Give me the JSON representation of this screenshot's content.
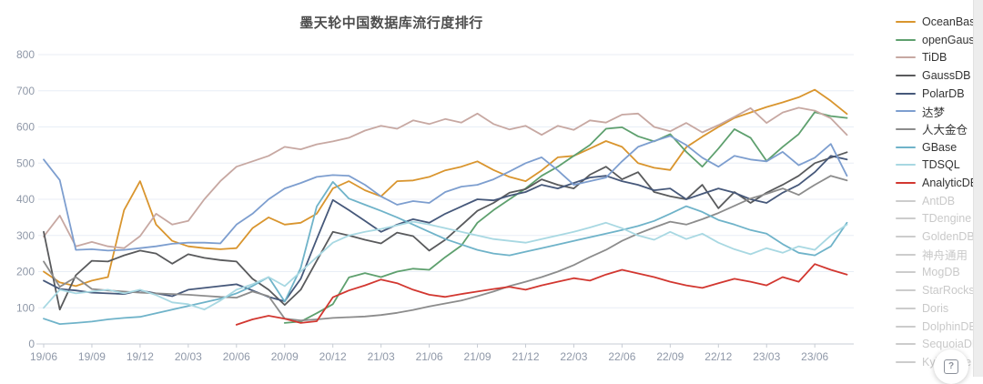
{
  "help_button": {
    "icon": "boxed-question-icon",
    "label": "?"
  },
  "chart_data": {
    "type": "line",
    "title": "墨天轮中国数据库流行度排行",
    "x_start": "19/06",
    "x_end": "23/08",
    "x_interval": "monthly",
    "x_tick_labels": [
      "19/06",
      "19/09",
      "19/12",
      "20/03",
      "20/06",
      "20/09",
      "20/12",
      "21/03",
      "21/06",
      "21/09",
      "21/12",
      "22/03",
      "22/06",
      "22/09",
      "22/12",
      "23/03",
      "23/06"
    ],
    "x_tick_every": 3,
    "y_ticks": [
      0,
      100,
      200,
      300,
      400,
      500,
      600,
      700,
      800
    ],
    "ylim": [
      0,
      800
    ],
    "grid": "horizontal",
    "legend_position": "right",
    "series": [
      {
        "name": "OceanBase",
        "color": "#d9952e",
        "start_index": 0,
        "values": [
          200,
          170,
          160,
          175,
          185,
          370,
          450,
          330,
          285,
          270,
          265,
          262,
          265,
          320,
          350,
          330,
          335,
          360,
          430,
          450,
          425,
          408,
          450,
          452,
          462,
          480,
          490,
          505,
          481,
          462,
          450,
          480,
          516,
          520,
          540,
          561,
          545,
          500,
          487,
          481,
          544,
          573,
          600,
          625,
          640,
          655,
          668,
          682,
          703,
          672,
          636
        ]
      },
      {
        "name": "openGauss",
        "color": "#5ea06e",
        "start_index": 15,
        "values": [
          58,
          62,
          85,
          110,
          184,
          196,
          185,
          200,
          208,
          205,
          240,
          272,
          335,
          370,
          400,
          430,
          465,
          490,
          520,
          550,
          595,
          599,
          574,
          560,
          580,
          531,
          490,
          540,
          594,
          570,
          506,
          545,
          580,
          641,
          630,
          625
        ]
      },
      {
        "name": "TiDB",
        "color": "#c7a8a2",
        "start_index": 0,
        "values": [
          297,
          355,
          270,
          282,
          270,
          265,
          298,
          360,
          330,
          340,
          400,
          450,
          490,
          505,
          520,
          545,
          538,
          552,
          560,
          570,
          590,
          603,
          595,
          618,
          608,
          622,
          612,
          637,
          608,
          593,
          603,
          578,
          603,
          592,
          618,
          612,
          634,
          637,
          600,
          588,
          611,
          585,
          605,
          628,
          652,
          611,
          640,
          653,
          645,
          624,
          578
        ]
      },
      {
        "name": "GaussDB",
        "color": "#595a5c",
        "start_index": 0,
        "values": [
          310,
          95,
          190,
          230,
          228,
          245,
          258,
          250,
          222,
          248,
          238,
          232,
          228,
          180,
          150,
          108,
          150,
          230,
          310,
          300,
          288,
          278,
          308,
          298,
          258,
          288,
          328,
          368,
          390,
          418,
          428,
          455,
          440,
          430,
          468,
          490,
          455,
          475,
          420,
          408,
          400,
          440,
          375,
          420,
          390,
          418,
          440,
          465,
          500,
          515,
          530
        ]
      },
      {
        "name": "PolarDB",
        "color": "#46587a",
        "start_index": 0,
        "values": [
          175,
          152,
          148,
          142,
          140,
          138,
          148,
          140,
          132,
          150,
          155,
          160,
          165,
          148,
          130,
          118,
          180,
          290,
          398,
          370,
          340,
          310,
          330,
          345,
          335,
          360,
          380,
          400,
          397,
          410,
          420,
          440,
          430,
          445,
          460,
          465,
          450,
          440,
          425,
          430,
          400,
          415,
          430,
          418,
          400,
          390,
          418,
          440,
          475,
          520,
          510
        ]
      },
      {
        "name": "达梦",
        "color": "#7d9ecf",
        "start_index": 0,
        "values": [
          510,
          453,
          260,
          262,
          258,
          260,
          265,
          270,
          277,
          280,
          280,
          278,
          330,
          360,
          400,
          430,
          445,
          462,
          467,
          465,
          440,
          408,
          385,
          395,
          390,
          420,
          435,
          440,
          455,
          477,
          500,
          516,
          480,
          440,
          450,
          460,
          505,
          545,
          561,
          575,
          550,
          515,
          490,
          520,
          510,
          505,
          531,
          494,
          515,
          553,
          465
        ]
      },
      {
        "name": "人大金仓",
        "color": "#8c8c8c",
        "start_index": 0,
        "values": [
          228,
          158,
          185,
          152,
          148,
          145,
          142,
          140,
          138,
          136,
          133,
          130,
          128,
          145,
          132,
          70,
          65,
          68,
          72,
          74,
          76,
          80,
          86,
          94,
          104,
          112,
          120,
          132,
          145,
          160,
          172,
          185,
          200,
          218,
          240,
          260,
          285,
          305,
          322,
          338,
          330,
          345,
          362,
          382,
          402,
          415,
          430,
          412,
          440,
          465,
          452
        ]
      },
      {
        "name": "GBase",
        "color": "#6fb3c9",
        "start_index": 0,
        "values": [
          70,
          55,
          58,
          62,
          68,
          72,
          75,
          85,
          95,
          105,
          115,
          125,
          140,
          160,
          185,
          117,
          210,
          380,
          448,
          402,
          385,
          368,
          350,
          330,
          310,
          290,
          275,
          260,
          250,
          245,
          255,
          265,
          275,
          285,
          295,
          305,
          315,
          326,
          340,
          360,
          381,
          365,
          343,
          330,
          315,
          305,
          276,
          252,
          245,
          270,
          335
        ]
      },
      {
        "name": "TDSQL",
        "color": "#a8d8e2",
        "start_index": 0,
        "values": [
          100,
          150,
          140,
          145,
          150,
          140,
          150,
          135,
          115,
          110,
          95,
          120,
          150,
          165,
          185,
          160,
          200,
          240,
          280,
          300,
          310,
          318,
          328,
          338,
          330,
          320,
          310,
          300,
          290,
          285,
          280,
          290,
          300,
          310,
          322,
          335,
          320,
          300,
          288,
          310,
          290,
          305,
          280,
          262,
          248,
          265,
          252,
          270,
          260,
          300,
          330
        ]
      },
      {
        "name": "AnalyticDB",
        "color": "#d23730",
        "start_index": 12,
        "values": [
          53,
          68,
          78,
          70,
          58,
          63,
          129,
          148,
          162,
          178,
          168,
          150,
          136,
          130,
          138,
          145,
          152,
          158,
          150,
          162,
          172,
          182,
          175,
          192,
          205,
          195,
          185,
          172,
          162,
          155,
          168,
          180,
          172,
          162,
          185,
          172,
          221,
          205,
          192
        ]
      }
    ],
    "inactive_series": [
      "AntDB",
      "TDengine",
      "GoldenDB",
      "神舟通用",
      "MogDB",
      "StarRocks",
      "Doris",
      "DolphinDB",
      "SequoiaDB",
      "Kyligence"
    ],
    "inactive_color": "#cccccc",
    "style": {
      "grid_color": "#e8eef6",
      "axis_color": "#c7ccd4",
      "tick_text_color": "#8f98a8",
      "title_color": "#4d4d4d"
    }
  }
}
